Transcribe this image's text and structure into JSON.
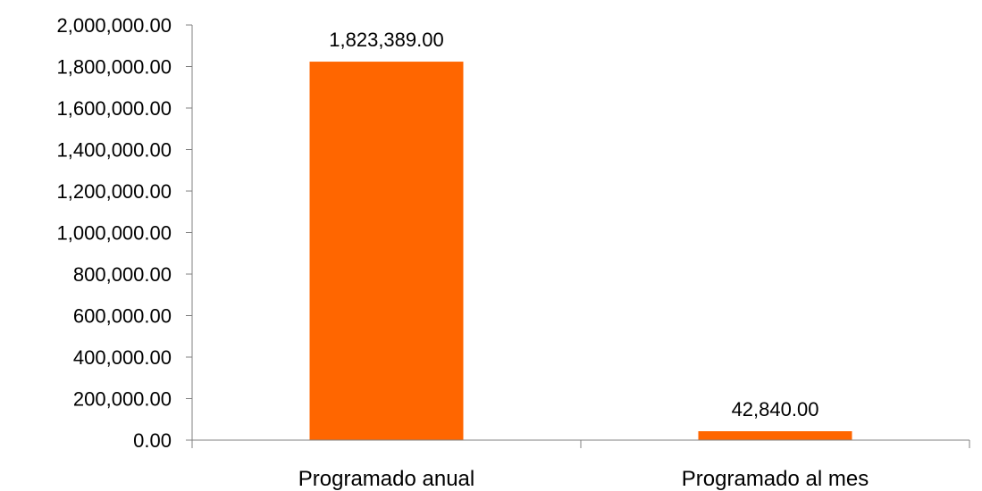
{
  "chart_data": {
    "type": "bar",
    "categories": [
      "Programado anual",
      "Programado al mes"
    ],
    "values": [
      1823389.0,
      42840.0
    ],
    "value_labels": [
      "1,823,389.00",
      "42,840.00"
    ],
    "title": "",
    "xlabel": "",
    "ylabel": "",
    "ylim": [
      0,
      2000000
    ],
    "yticks": [
      0,
      200000,
      400000,
      600000,
      800000,
      1000000,
      1200000,
      1400000,
      1600000,
      1800000,
      2000000
    ],
    "ytick_labels": [
      "0.00",
      "200,000.00",
      "400,000.00",
      "600,000.00",
      "800,000.00",
      "1,000,000.00",
      "1,200,000.00",
      "1,400,000.00",
      "1,600,000.00",
      "1,800,000.00",
      "2,000,000.00"
    ],
    "grid": false,
    "legend": "none",
    "bar_color": "#FF6600",
    "axis_color": "#808080"
  }
}
